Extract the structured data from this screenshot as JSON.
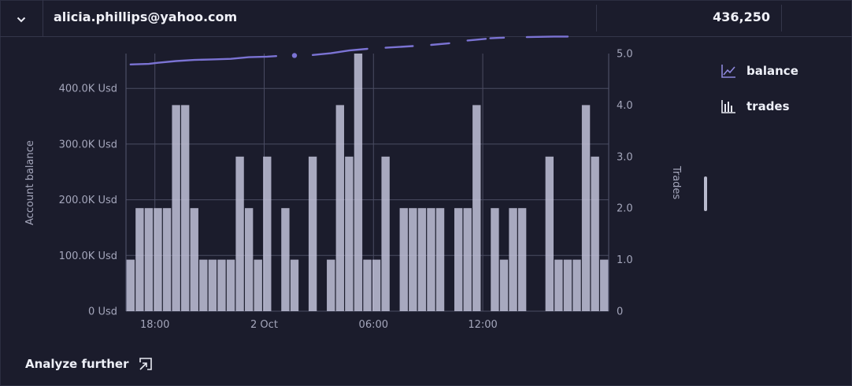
{
  "header": {
    "email": "alicia.phillips@yahoo.com",
    "value": "436,250"
  },
  "icons": {
    "expand": "chevron-down-icon",
    "balance": "line-chart-icon",
    "trades": "bar-chart-icon",
    "analyze": "open-external-icon"
  },
  "legend": {
    "balance_label": "balance",
    "trades_label": "trades"
  },
  "footer": {
    "analyze_label": "Analyze further"
  },
  "colors": {
    "background": "#1b1c2c",
    "bar_fill": "#c8c8df",
    "balance_line": "#7b73d4",
    "grid": "#4a4c62"
  },
  "chart_data": {
    "type": "bar",
    "ylabel": "Account balance",
    "y2label": "Trades",
    "yticks": [
      "0 Usd",
      "100.0K Usd",
      "200.0K Usd",
      "300.0K Usd",
      "400.0K Usd"
    ],
    "y2ticks": [
      "0",
      "1.0",
      "2.0",
      "3.0",
      "4.0",
      "5.0"
    ],
    "xticks": [
      "18:00",
      "2 Oct",
      "06:00",
      "12:00"
    ],
    "y2lim": [
      0,
      5
    ],
    "grid": true,
    "legend_position": "right",
    "series": [
      {
        "name": "trades",
        "kind": "bar",
        "axis": "right",
        "values": [
          1,
          2,
          2,
          2,
          2,
          4,
          4,
          2,
          1,
          1,
          1,
          1,
          3,
          2,
          1,
          3,
          0,
          2,
          1,
          0,
          3,
          0,
          1,
          4,
          3,
          5,
          1,
          1,
          3,
          0,
          2,
          2,
          2,
          2,
          2,
          0,
          2,
          2,
          4,
          0,
          2,
          1,
          2,
          2,
          0,
          0,
          3,
          1,
          1,
          1,
          4,
          3,
          1
        ]
      },
      {
        "name": "balance",
        "kind": "line",
        "axis": "left",
        "points": [
          [
            0,
            443000
          ],
          [
            2,
            444000
          ],
          [
            3,
            446000
          ],
          [
            5,
            449000
          ],
          [
            7,
            451000
          ],
          [
            9,
            452000
          ],
          [
            11,
            453000
          ],
          [
            13,
            456000
          ],
          [
            15,
            457000
          ],
          [
            16,
            458000
          ]
        ],
        "segments": [
          [
            [
              0,
              443000
            ],
            [
              2,
              444000
            ],
            [
              3,
              446000
            ],
            [
              5,
              449000
            ],
            [
              7,
              451000
            ],
            [
              9,
              452000
            ],
            [
              11,
              453000
            ],
            [
              13,
              456000
            ],
            [
              15,
              457000
            ],
            [
              16,
              458000
            ]
          ],
          [
            [
              18,
              459000
            ]
          ],
          [
            [
              20,
              460000
            ],
            [
              22,
              463000
            ],
            [
              24,
              468000
            ],
            [
              26,
              471000
            ]
          ],
          [
            [
              28,
              473000
            ],
            [
              31,
              476000
            ]
          ],
          [
            [
              33,
              478000
            ],
            [
              35,
              481000
            ]
          ],
          [
            [
              37,
              486000
            ],
            [
              39,
              489000
            ]
          ],
          [
            [
              39.5,
              490000
            ],
            [
              41,
              491000
            ]
          ],
          [
            [
              43.5,
              492000
            ],
            [
              46.5,
              493000
            ],
            [
              48,
              493000
            ]
          ]
        ]
      }
    ]
  }
}
